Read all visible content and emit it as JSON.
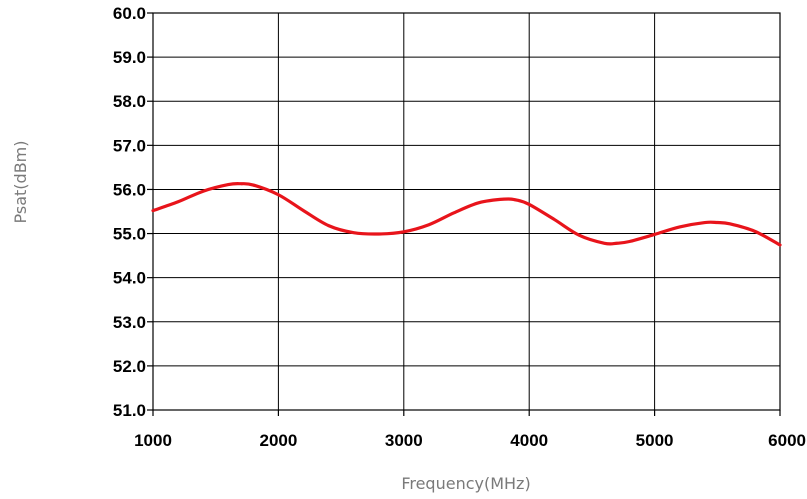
{
  "chart_data": {
    "type": "line",
    "title": "",
    "xlabel": "Frequency(MHz)",
    "ylabel": "Psat(dBm)",
    "xlim": [
      1000,
      6000
    ],
    "ylim": [
      51.0,
      60.0
    ],
    "x_ticks": [
      1000,
      2000,
      3000,
      4000,
      5000,
      6000
    ],
    "y_ticks": [
      51.0,
      52.0,
      53.0,
      54.0,
      55.0,
      56.0,
      57.0,
      58.0,
      59.0,
      60.0
    ],
    "x_tick_labels": [
      "1000",
      "2000",
      "3000",
      "4000",
      "5000",
      "6000"
    ],
    "y_tick_labels": [
      "51.0",
      "52.0",
      "53.0",
      "54.0",
      "55.0",
      "56.0",
      "57.0",
      "58.0",
      "59.0",
      "60.0"
    ],
    "grid": true,
    "series": [
      {
        "color": "#e8141b",
        "x": [
          1000,
          1200,
          1400,
          1600,
          1700,
          1800,
          2000,
          2200,
          2400,
          2600,
          2800,
          3000,
          3200,
          3400,
          3600,
          3800,
          3900,
          4000,
          4200,
          4400,
          4600,
          4700,
          4800,
          5000,
          5200,
          5400,
          5500,
          5600,
          5800,
          6000
        ],
        "y": [
          55.52,
          55.72,
          55.96,
          56.11,
          56.13,
          56.1,
          55.88,
          55.52,
          55.18,
          55.02,
          54.99,
          55.04,
          55.2,
          55.47,
          55.7,
          55.78,
          55.76,
          55.66,
          55.32,
          54.96,
          54.78,
          54.78,
          54.82,
          54.98,
          55.15,
          55.25,
          55.25,
          55.22,
          55.05,
          54.74
        ]
      }
    ]
  }
}
